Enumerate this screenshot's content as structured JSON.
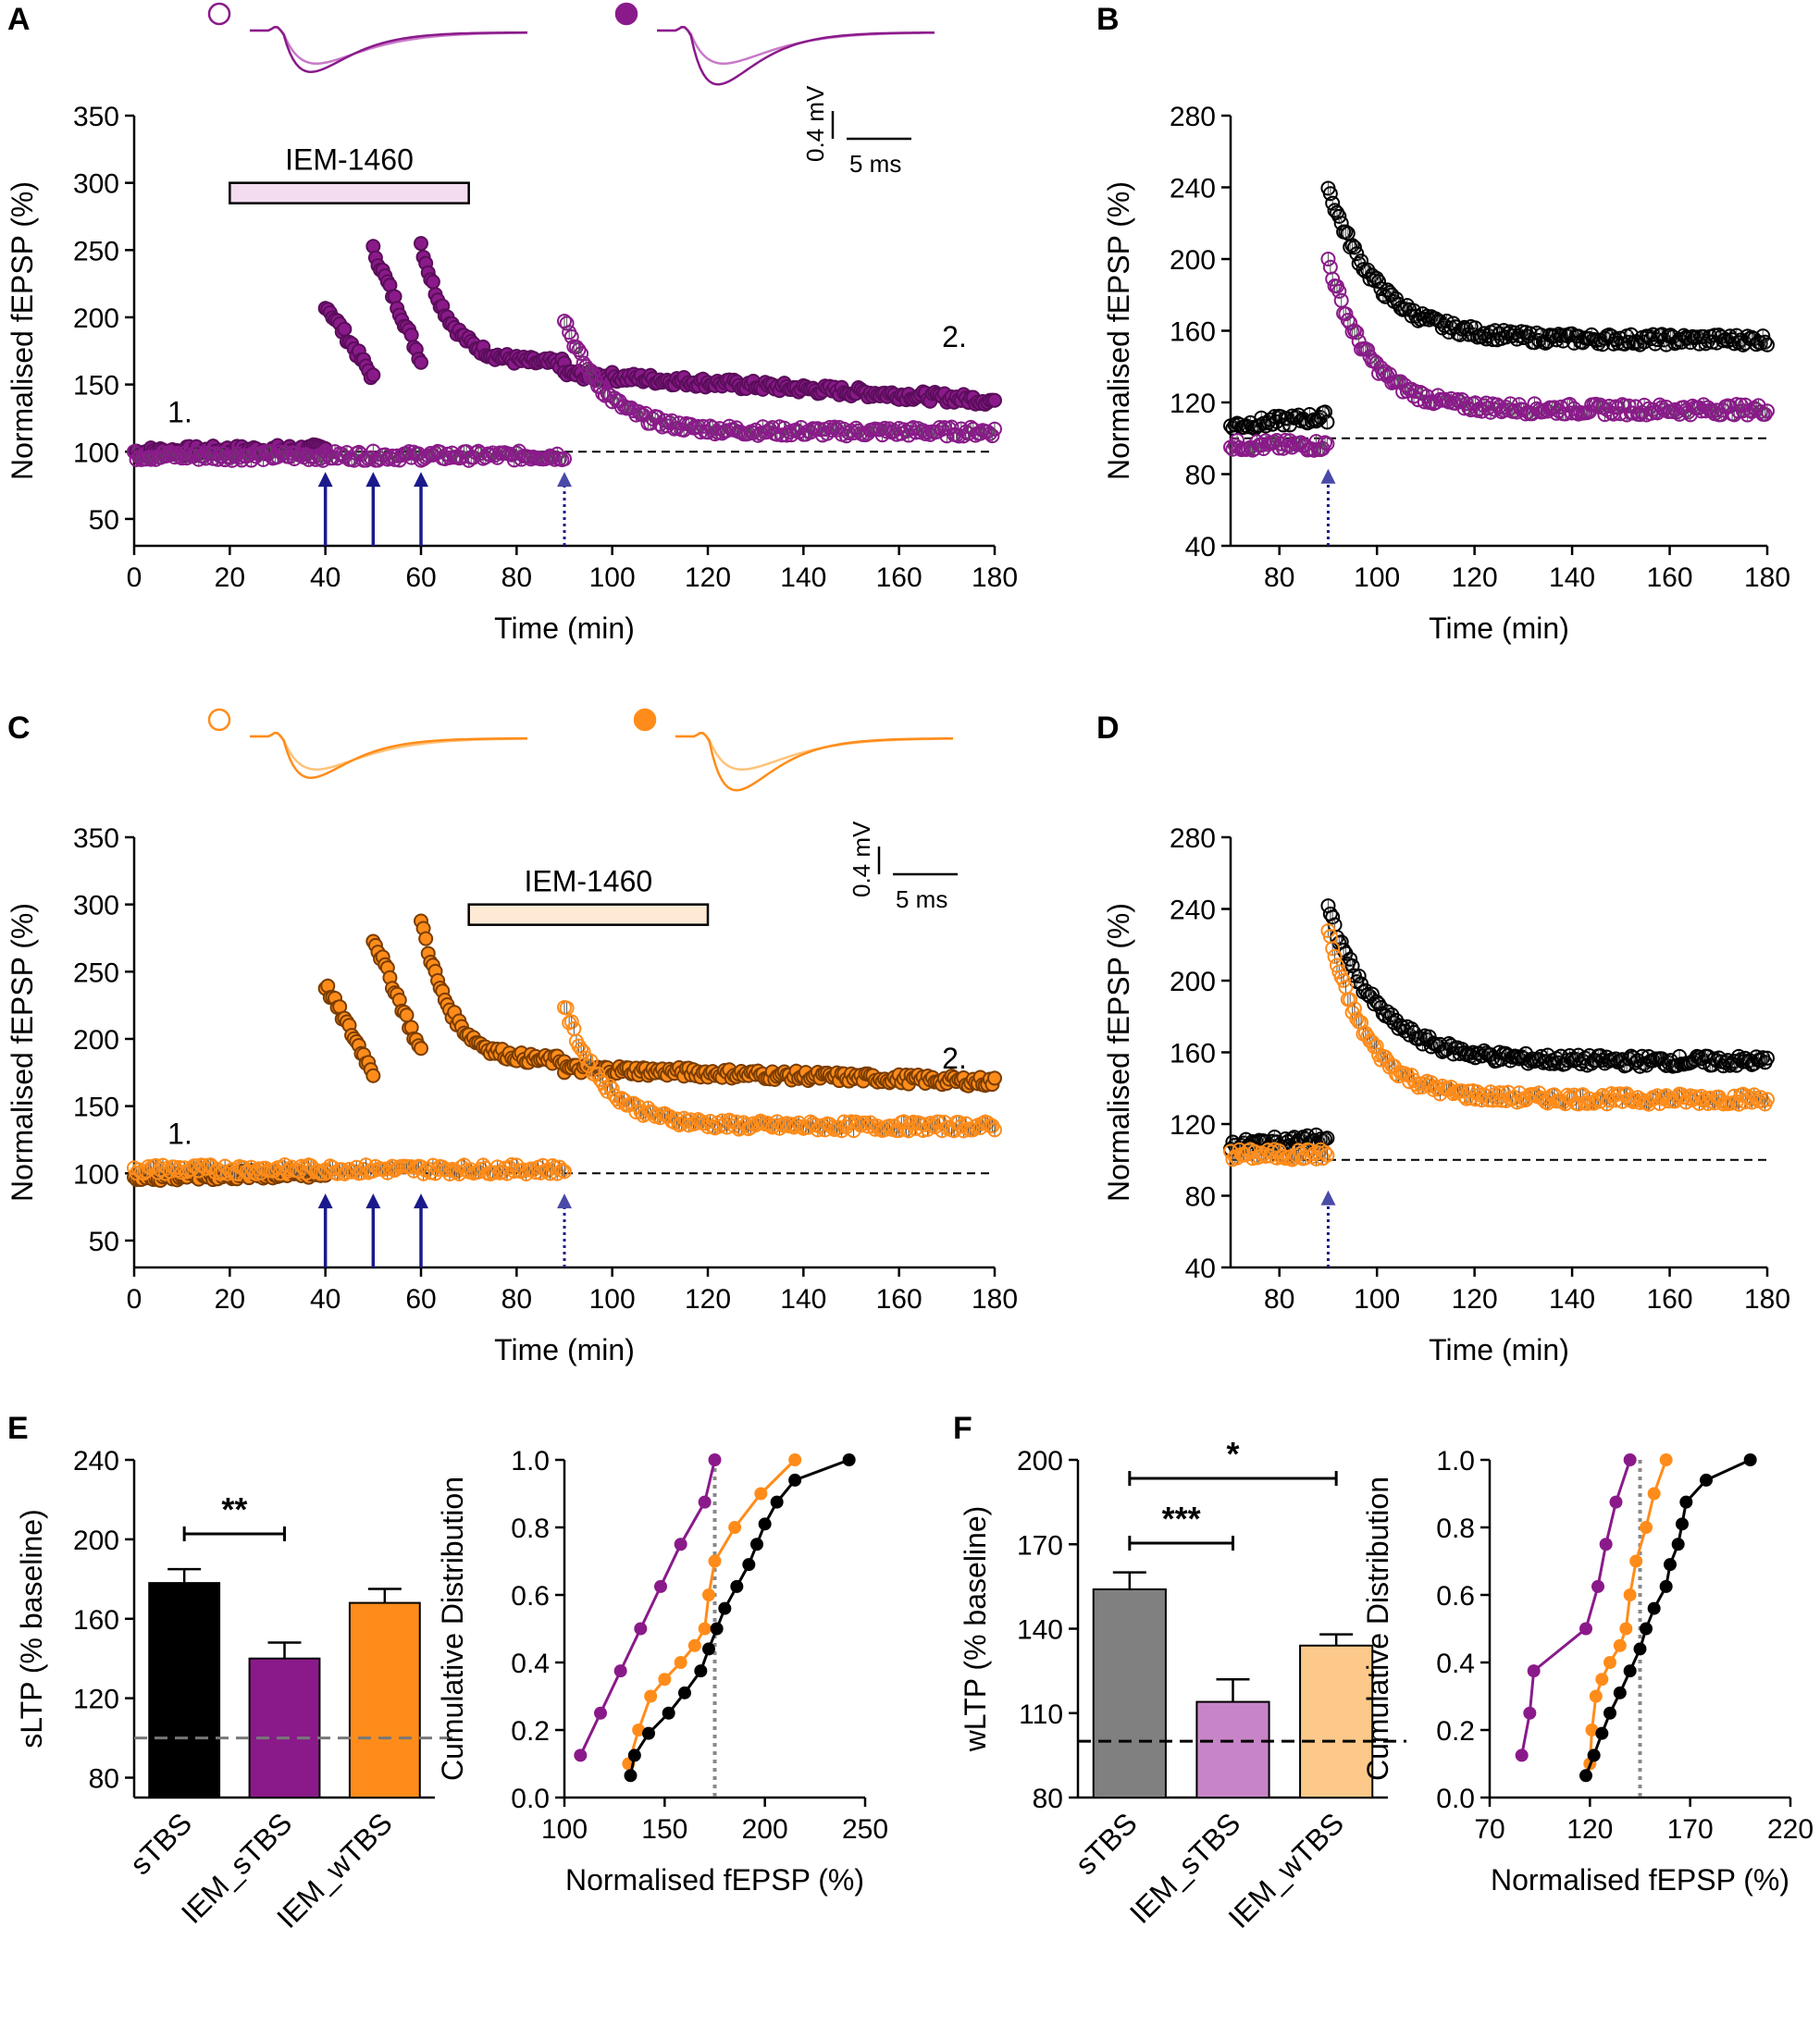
{
  "colors": {
    "purple": "#8a1a8a",
    "purple_dark": "#5a0d5a",
    "purple_light": "#c97ac9",
    "orange": "#ff8c1a",
    "orange_light": "#ffc27a",
    "black": "#000000",
    "gray": "#808080",
    "navy": "#1a1a8c",
    "arrow_light": "#4a4aa8"
  },
  "chart_data": [
    {
      "panel": "A",
      "type": "scatter",
      "xlabel": "Time (min)",
      "ylabel": "Normalised fEPSP (%)",
      "xlim": [
        0,
        180
      ],
      "ylim": [
        30,
        350
      ],
      "xticks": [
        0,
        20,
        40,
        60,
        80,
        100,
        120,
        140,
        160,
        180
      ],
      "yticks": [
        50,
        100,
        150,
        200,
        250,
        300,
        350
      ],
      "drug_label": "IEM-1460",
      "drug_window": [
        20,
        70
      ],
      "baseline": 100,
      "label_1": "1.",
      "label_2": "2.",
      "scale_mv": "0.4 mV",
      "scale_ms": "5 ms",
      "series": [
        {
          "name": "IEM_sTBS (filled)",
          "filled": true,
          "segments": [
            {
              "x0": 0,
              "x1": 40,
              "y0": 100,
              "y1": 102
            },
            {
              "x0": 40,
              "x1": 50,
              "y0": 210,
              "y1": 155
            },
            {
              "x0": 50,
              "x1": 60,
              "y0": 250,
              "y1": 168
            },
            {
              "x0": 60,
              "x1": 90,
              "peak": 255,
              "plateau": 165,
              "tau": 6
            },
            {
              "x0": 90,
              "x1": 180,
              "y0": 158,
              "y1": 138
            }
          ]
        },
        {
          "name": "IEM_wTBS (open)",
          "filled": false,
          "segments": [
            {
              "x0": 0,
              "x1": 90,
              "y0": 97,
              "y1": 97
            },
            {
              "x0": 90,
              "x1": 180,
              "peak": 200,
              "plateau": 115,
              "tau": 8
            }
          ]
        }
      ],
      "arrows_solid": [
        40,
        50,
        60
      ],
      "arrows_dotted": [
        90
      ]
    },
    {
      "panel": "B",
      "type": "scatter",
      "xlabel": "Time (min)",
      "ylabel": "Normalised fEPSP (%)",
      "xlim": [
        70,
        180
      ],
      "ylim": [
        40,
        280
      ],
      "xticks": [
        80,
        100,
        120,
        140,
        160,
        180
      ],
      "yticks": [
        40,
        80,
        120,
        160,
        200,
        240,
        280
      ],
      "baseline": 100,
      "series": [
        {
          "name": "control (black)",
          "segments": [
            {
              "x0": 70,
              "x1": 90,
              "y0": 107,
              "y1": 112
            },
            {
              "x0": 90,
              "x1": 180,
              "peak": 240,
              "plateau": 155,
              "tau": 10
            }
          ]
        },
        {
          "name": "IEM (purple)",
          "segments": [
            {
              "x0": 70,
              "x1": 90,
              "y0": 96,
              "y1": 96
            },
            {
              "x0": 90,
              "x1": 180,
              "peak": 200,
              "plateau": 116,
              "tau": 8
            }
          ]
        }
      ],
      "arrows_dotted": [
        90
      ]
    },
    {
      "panel": "C",
      "type": "scatter",
      "xlabel": "Time (min)",
      "ylabel": "Normalised fEPSP (%)",
      "xlim": [
        0,
        180
      ],
      "ylim": [
        30,
        350
      ],
      "xticks": [
        0,
        20,
        40,
        60,
        80,
        100,
        120,
        140,
        160,
        180
      ],
      "yticks": [
        50,
        100,
        150,
        200,
        250,
        300,
        350
      ],
      "drug_label": "IEM-1460",
      "drug_window": [
        70,
        120
      ],
      "baseline": 100,
      "label_1": "1.",
      "label_2": "2.",
      "scale_mv": "0.4 mV",
      "scale_ms": "5 ms",
      "series": [
        {
          "name": "sTBS then IEM (filled)",
          "filled": true,
          "segments": [
            {
              "x0": 0,
              "x1": 40,
              "y0": 97,
              "y1": 100
            },
            {
              "x0": 40,
              "x1": 50,
              "y0": 240,
              "y1": 175
            },
            {
              "x0": 50,
              "x1": 60,
              "y0": 275,
              "y1": 190
            },
            {
              "x0": 60,
              "x1": 90,
              "peak": 290,
              "plateau": 183,
              "tau": 6
            },
            {
              "x0": 90,
              "x1": 180,
              "y0": 178,
              "y1": 168
            }
          ]
        },
        {
          "name": "wTBS (open)",
          "filled": false,
          "segments": [
            {
              "x0": 0,
              "x1": 90,
              "y0": 103,
              "y1": 103
            },
            {
              "x0": 90,
              "x1": 180,
              "peak": 225,
              "plateau": 135,
              "tau": 8
            }
          ]
        }
      ],
      "arrows_solid": [
        40,
        50,
        60
      ],
      "arrows_dotted": [
        90
      ]
    },
    {
      "panel": "D",
      "type": "scatter",
      "xlabel": "Time (min)",
      "ylabel": "Normalised fEPSP (%)",
      "xlim": [
        70,
        180
      ],
      "ylim": [
        40,
        280
      ],
      "xticks": [
        80,
        100,
        120,
        140,
        160,
        180
      ],
      "yticks": [
        40,
        80,
        120,
        160,
        200,
        240,
        280
      ],
      "baseline": 100,
      "series": [
        {
          "name": "control (black)",
          "segments": [
            {
              "x0": 70,
              "x1": 90,
              "y0": 108,
              "y1": 112
            },
            {
              "x0": 90,
              "x1": 180,
              "peak": 240,
              "plateau": 155,
              "tau": 10
            }
          ]
        },
        {
          "name": "IEM (orange)",
          "segments": [
            {
              "x0": 70,
              "x1": 90,
              "y0": 103,
              "y1": 103
            },
            {
              "x0": 90,
              "x1": 180,
              "peak": 228,
              "plateau": 134,
              "tau": 8
            }
          ]
        }
      ],
      "arrows_dotted": [
        90
      ]
    },
    {
      "panel": "E",
      "type": "bar",
      "ylabel": "sLTP (% baseline)",
      "ylim": [
        70,
        240
      ],
      "yticks": [
        80,
        120,
        160,
        200,
        240
      ],
      "categories": [
        "sTBS",
        "IEM_sTBS",
        "IEM_wTBS"
      ],
      "values": [
        178,
        140,
        168
      ],
      "errors": [
        7,
        8,
        7
      ],
      "baseline": 100,
      "significance": [
        {
          "from": 0,
          "to": 1,
          "label": "**"
        }
      ]
    },
    {
      "panel": "E2",
      "type": "line",
      "xlabel": "Normalised fEPSP (%)",
      "ylabel": "Cumulative Distribution",
      "xlim": [
        100,
        250
      ],
      "ylim": [
        0,
        1
      ],
      "xticks": [
        100,
        150,
        200,
        250
      ],
      "yticks": [
        0.0,
        0.2,
        0.4,
        0.6,
        0.8,
        1.0
      ],
      "ytick_labels": [
        "0.0",
        "0.2",
        "0.4",
        "0.6",
        "0.8",
        "1.0"
      ],
      "vline": 175,
      "series": [
        {
          "name": "IEM_sTBS",
          "color": "purple",
          "x": [
            108,
            118,
            128,
            138,
            148,
            158,
            170,
            175
          ],
          "y": [
            0.125,
            0.25,
            0.375,
            0.5,
            0.625,
            0.75,
            0.875,
            1.0
          ]
        },
        {
          "name": "IEM_wTBS",
          "color": "orange",
          "x": [
            132,
            137,
            143,
            150,
            158,
            165,
            170,
            172,
            175,
            185,
            198,
            215
          ],
          "y": [
            0.1,
            0.2,
            0.3,
            0.35,
            0.4,
            0.45,
            0.5,
            0.6,
            0.7,
            0.8,
            0.9,
            1.0
          ]
        },
        {
          "name": "sTBS",
          "color": "black",
          "x": [
            133,
            135,
            142,
            152,
            160,
            168,
            172,
            176,
            180,
            186,
            192,
            196,
            200,
            206,
            215,
            242
          ],
          "y": [
            0.065,
            0.125,
            0.19,
            0.25,
            0.31,
            0.375,
            0.44,
            0.5,
            0.56,
            0.625,
            0.69,
            0.75,
            0.81,
            0.875,
            0.94,
            1.0
          ]
        }
      ]
    },
    {
      "panel": "F",
      "type": "bar",
      "ylabel": "wLTP (% baseline)",
      "ylim": [
        80,
        200
      ],
      "yticks": [
        80,
        110,
        140,
        170,
        200
      ],
      "categories": [
        "sTBS",
        "IEM_sTBS",
        "IEM_wTBS"
      ],
      "values": [
        154,
        114,
        134
      ],
      "errors": [
        6,
        8,
        4
      ],
      "baseline": 100,
      "significance": [
        {
          "from": 0,
          "to": 2,
          "label": "*"
        },
        {
          "from": 0,
          "to": 1,
          "label": "***"
        }
      ]
    },
    {
      "panel": "F2",
      "type": "line",
      "xlabel": "Normalised fEPSP (%)",
      "ylabel": "Cumulative Distribution",
      "xlim": [
        70,
        220
      ],
      "ylim": [
        0,
        1
      ],
      "xticks": [
        70,
        120,
        170,
        220
      ],
      "yticks": [
        0.0,
        0.2,
        0.4,
        0.6,
        0.8,
        1.0
      ],
      "ytick_labels": [
        "0.0",
        "0.2",
        "0.4",
        "0.6",
        "0.8",
        "1.0"
      ],
      "vline": 145,
      "series": [
        {
          "name": "IEM_sTBS",
          "color": "purple",
          "x": [
            86,
            90,
            92,
            118,
            124,
            128,
            133,
            140
          ],
          "y": [
            0.125,
            0.25,
            0.375,
            0.5,
            0.625,
            0.75,
            0.875,
            1.0
          ]
        },
        {
          "name": "IEM_wTBS",
          "color": "orange",
          "x": [
            120,
            121,
            123,
            126,
            130,
            135,
            138,
            140,
            143,
            148,
            152,
            158
          ],
          "y": [
            0.1,
            0.2,
            0.3,
            0.35,
            0.4,
            0.45,
            0.5,
            0.6,
            0.7,
            0.8,
            0.9,
            1.0
          ]
        },
        {
          "name": "sTBS",
          "color": "black",
          "x": [
            118,
            122,
            126,
            130,
            135,
            140,
            145,
            148,
            152,
            158,
            160,
            164,
            166,
            168,
            178,
            200
          ],
          "y": [
            0.065,
            0.125,
            0.19,
            0.25,
            0.31,
            0.375,
            0.44,
            0.5,
            0.56,
            0.625,
            0.69,
            0.75,
            0.81,
            0.875,
            0.94,
            1.0
          ]
        }
      ]
    }
  ],
  "panel_labels": [
    "A",
    "B",
    "C",
    "D",
    "E",
    "F"
  ]
}
